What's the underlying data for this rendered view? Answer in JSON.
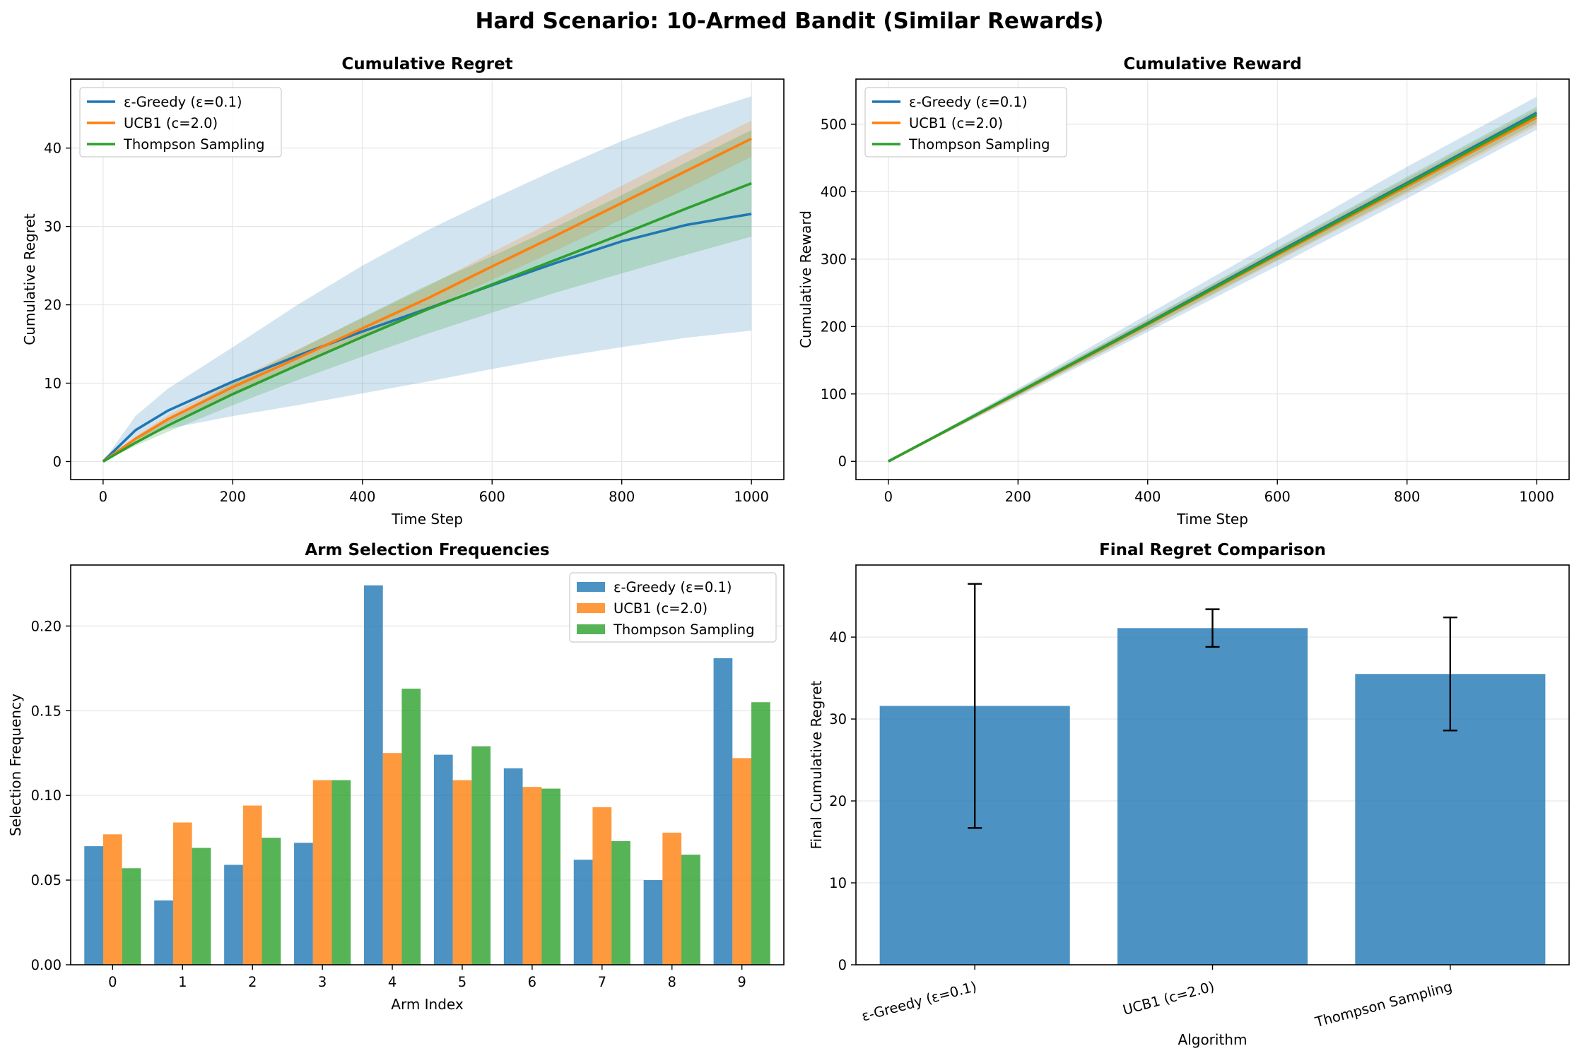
{
  "figure_title": "Hard Scenario: 10-Armed Bandit (Similar Rewards)",
  "colors": {
    "eps_greedy": "#1f77b4",
    "ucb1": "#ff7f0e",
    "thompson": "#2ca02c",
    "final_bar": "#1f77b4",
    "grid": "#e6e6e6",
    "axis": "#000000"
  },
  "chart_data": [
    {
      "type": "line",
      "title": "Cumulative Regret",
      "xlabel": "Time Step",
      "ylabel": "Cumulative Regret",
      "xlim": [
        -50,
        1050
      ],
      "ylim": [
        -2.3,
        48.8
      ],
      "xticks": [
        0,
        200,
        400,
        600,
        800,
        1000
      ],
      "yticks": [
        0,
        10,
        20,
        30,
        40
      ],
      "grid": true,
      "legend_position": "upper left",
      "series": [
        {
          "name": "ε-Greedy (ε=0.1)",
          "color": "#1f77b4",
          "x": [
            0,
            50,
            100,
            200,
            300,
            400,
            500,
            600,
            700,
            800,
            900,
            1000
          ],
          "values": [
            0,
            4.0,
            6.5,
            10.2,
            13.5,
            16.6,
            19.5,
            22.5,
            25.4,
            28.1,
            30.2,
            31.6
          ],
          "band_lower": [
            0,
            2.8,
            4.2,
            5.8,
            7.2,
            8.7,
            10.2,
            11.8,
            13.3,
            14.6,
            15.8,
            16.7
          ],
          "band_upper": [
            0,
            5.8,
            9.3,
            14.6,
            20.0,
            25.0,
            29.5,
            33.5,
            37.3,
            40.9,
            44.0,
            46.6
          ]
        },
        {
          "name": "UCB1 (c=2.0)",
          "color": "#ff7f0e",
          "x": [
            0,
            50,
            100,
            200,
            300,
            400,
            500,
            600,
            700,
            800,
            900,
            1000
          ],
          "values": [
            0,
            2.9,
            5.4,
            9.5,
            13.2,
            17.0,
            20.8,
            24.9,
            28.9,
            33.0,
            37.1,
            41.2
          ],
          "band_lower": [
            0,
            2.6,
            4.9,
            8.7,
            12.2,
            15.8,
            19.4,
            23.2,
            27.0,
            30.9,
            34.8,
            38.9
          ],
          "band_upper": [
            0,
            3.2,
            5.9,
            10.3,
            14.3,
            18.3,
            22.3,
            26.7,
            30.9,
            35.2,
            39.4,
            43.5
          ]
        },
        {
          "name": "Thompson Sampling",
          "color": "#2ca02c",
          "x": [
            0,
            50,
            100,
            200,
            300,
            400,
            500,
            600,
            700,
            800,
            900,
            1000
          ],
          "values": [
            0,
            2.4,
            4.6,
            8.6,
            12.3,
            15.9,
            19.4,
            22.6,
            25.8,
            29.0,
            32.3,
            35.5
          ],
          "band_lower": [
            0,
            2.0,
            3.8,
            7.2,
            10.4,
            13.4,
            16.3,
            19.0,
            21.6,
            24.0,
            26.4,
            28.7
          ],
          "band_upper": [
            0,
            2.8,
            5.4,
            10.0,
            14.2,
            18.4,
            22.5,
            26.2,
            30.0,
            34.0,
            38.2,
            42.3
          ]
        }
      ]
    },
    {
      "type": "line",
      "title": "Cumulative Reward",
      "xlabel": "Time Step",
      "ylabel": "Cumulative Reward",
      "xlim": [
        -50,
        1050
      ],
      "ylim": [
        -27,
        567
      ],
      "xticks": [
        0,
        200,
        400,
        600,
        800,
        1000
      ],
      "yticks": [
        0,
        100,
        200,
        300,
        400,
        500
      ],
      "grid": true,
      "legend_position": "upper left",
      "series": [
        {
          "name": "ε-Greedy (ε=0.1)",
          "color": "#1f77b4",
          "x": [
            0,
            200,
            400,
            600,
            800,
            1000
          ],
          "values": [
            0,
            102,
            205,
            310,
            413,
            517
          ],
          "band_lower": [
            0,
            95,
            192,
            290,
            390,
            492
          ],
          "band_upper": [
            0,
            108,
            218,
            328,
            437,
            541
          ]
        },
        {
          "name": "UCB1 (c=2.0)",
          "color": "#ff7f0e",
          "x": [
            0,
            200,
            400,
            600,
            800,
            1000
          ],
          "values": [
            0,
            101,
            203,
            306,
            408,
            510
          ],
          "band_lower": [
            0,
            97,
            196,
            297,
            397,
            498
          ],
          "band_upper": [
            0,
            105,
            210,
            315,
            419,
            522
          ]
        },
        {
          "name": "Thompson Sampling",
          "color": "#2ca02c",
          "x": [
            0,
            200,
            400,
            600,
            800,
            1000
          ],
          "values": [
            0,
            102,
            204,
            308,
            411,
            514
          ],
          "band_lower": [
            0,
            98,
            197,
            299,
            400,
            502
          ],
          "band_upper": [
            0,
            106,
            211,
            317,
            422,
            526
          ]
        }
      ]
    },
    {
      "type": "bar",
      "title": "Arm Selection Frequencies",
      "xlabel": "Arm Index",
      "ylabel": "Selection Frequency",
      "categories": [
        "0",
        "1",
        "2",
        "3",
        "4",
        "5",
        "6",
        "7",
        "8",
        "9"
      ],
      "ylim": [
        0,
        0.236
      ],
      "yticks": [
        "0.00",
        "0.05",
        "0.10",
        "0.15",
        "0.20"
      ],
      "grid": true,
      "legend_position": "upper right",
      "series": [
        {
          "name": "ε-Greedy (ε=0.1)",
          "color": "#1f77b4",
          "values": [
            0.07,
            0.038,
            0.059,
            0.072,
            0.224,
            0.124,
            0.116,
            0.062,
            0.05,
            0.181
          ]
        },
        {
          "name": "UCB1 (c=2.0)",
          "color": "#ff7f0e",
          "values": [
            0.077,
            0.084,
            0.094,
            0.109,
            0.125,
            0.109,
            0.105,
            0.093,
            0.078,
            0.122
          ]
        },
        {
          "name": "Thompson Sampling",
          "color": "#2ca02c",
          "values": [
            0.057,
            0.069,
            0.075,
            0.109,
            0.163,
            0.129,
            0.104,
            0.073,
            0.065,
            0.155
          ]
        }
      ]
    },
    {
      "type": "bar",
      "title": "Final Regret Comparison",
      "xlabel": "Algorithm",
      "ylabel": "Final Cumulative Regret",
      "categories": [
        "ε-Greedy (ε=0.1)",
        "UCB1 (c=2.0)",
        "Thompson Sampling"
      ],
      "values": [
        31.6,
        41.1,
        35.5
      ],
      "errors": [
        14.9,
        2.3,
        6.9
      ],
      "ylim": [
        0,
        48.8
      ],
      "yticks": [
        0,
        10,
        20,
        30,
        40
      ],
      "grid": true
    }
  ]
}
